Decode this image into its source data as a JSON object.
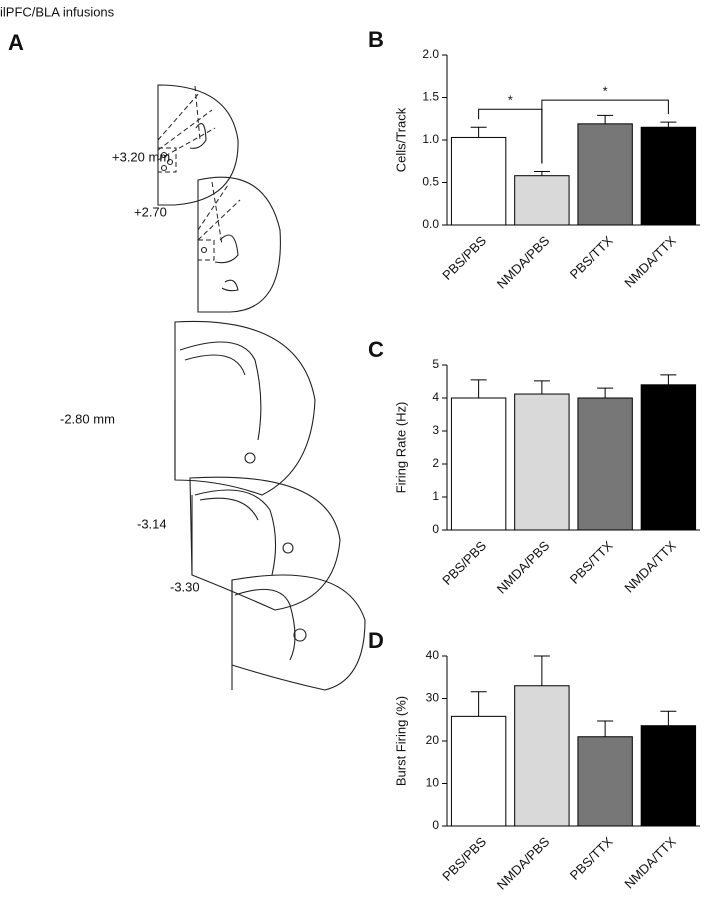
{
  "title": "ilPFC/BLA infusions",
  "panel_a": {
    "letter": "A",
    "labels": [
      "+3.20 mm",
      "+2.70",
      "-2.80 mm",
      "-3.14",
      "-3.30"
    ]
  },
  "chart_data": [
    {
      "type": "bar",
      "panel": "B",
      "y_label": "Cells/Track",
      "categories": [
        "PBS/PBS",
        "NMDA/PBS",
        "PBS/TTX",
        "NMDA/TTX"
      ],
      "values": [
        1.03,
        0.58,
        1.19,
        1.15
      ],
      "errors": [
        0.12,
        0.05,
        0.1,
        0.06
      ],
      "colors": [
        "#ffffff",
        "#d9d9d9",
        "#777777",
        "#000000"
      ],
      "ylim": [
        0,
        2
      ],
      "yticks": [
        {
          "value": 0,
          "label": "0.0"
        },
        0.5,
        {
          "value": 1,
          "label": "1.0"
        },
        1.5,
        {
          "value": 2,
          "label": "2.0"
        }
      ],
      "significance": [
        {
          "label": "*",
          "between": [
            0,
            1
          ]
        },
        {
          "label": "*",
          "between": [
            1,
            3
          ]
        }
      ]
    },
    {
      "type": "bar",
      "panel": "C",
      "y_label": "Firing Rate (Hz)",
      "categories": [
        "PBS/PBS",
        "NMDA/PBS",
        "PBS/TTX",
        "NMDA/TTX"
      ],
      "values": [
        4.0,
        4.12,
        4.0,
        4.4
      ],
      "errors": [
        0.55,
        0.4,
        0.3,
        0.3
      ],
      "colors": [
        "#ffffff",
        "#d9d9d9",
        "#777777",
        "#000000"
      ],
      "ylim": [
        0,
        5
      ],
      "yticks": [
        0,
        1,
        2,
        3,
        4,
        5
      ]
    },
    {
      "type": "bar",
      "panel": "D",
      "y_label": "Burst Firing (%)",
      "categories": [
        "PBS/PBS",
        "NMDA/PBS",
        "PBS/TTX",
        "NMDA/TTX"
      ],
      "values": [
        25.8,
        33,
        21,
        23.6
      ],
      "errors": [
        5.8,
        7,
        3.7,
        3.4
      ],
      "colors": [
        "#ffffff",
        "#d9d9d9",
        "#777777",
        "#000000"
      ],
      "ylim": [
        0,
        40
      ],
      "yticks": [
        0,
        10,
        20,
        30,
        40
      ]
    }
  ]
}
